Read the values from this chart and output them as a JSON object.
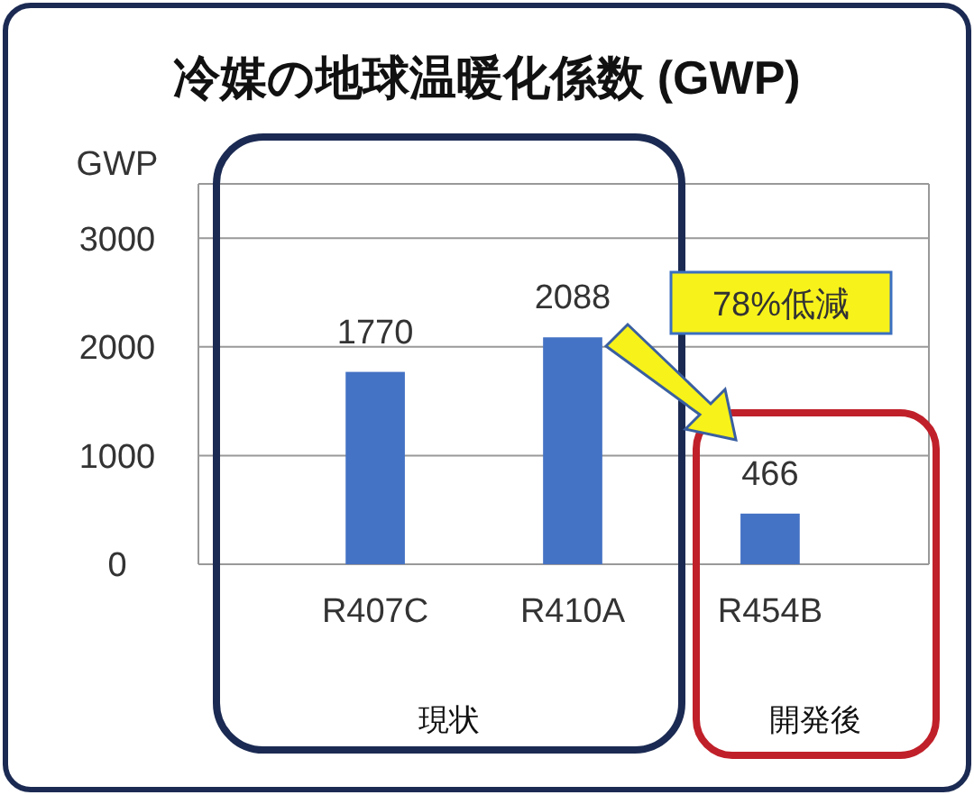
{
  "chart_data": {
    "type": "bar",
    "title": "冷媒の地球温暖化係数 (GWP)",
    "ylabel": "GWP",
    "categories": [
      "R407C",
      "R410A",
      "R454B"
    ],
    "values": [
      1770,
      2088,
      466
    ],
    "color": "#4472c4",
    "data_labels": true,
    "ylim": [
      0,
      3500
    ],
    "yticks": [
      0,
      1000,
      2000,
      3000
    ],
    "grid": "y",
    "annotations": [
      "78%低減",
      "現状",
      "開発後"
    ]
  }
}
